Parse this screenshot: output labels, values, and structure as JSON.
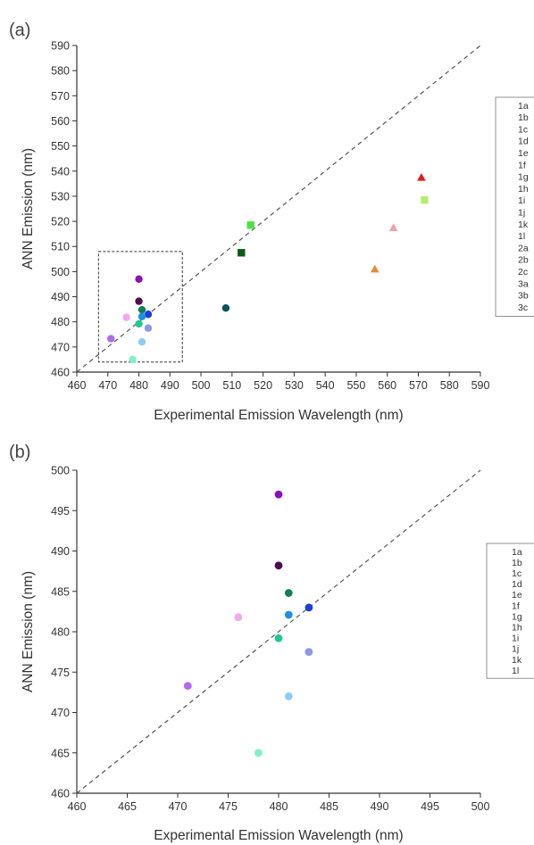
{
  "chart_data": [
    {
      "type": "scatter",
      "panel": "(a)",
      "xlabel": "Experimental Emission Wavelength (nm)",
      "ylabel": "ANN Emission (nm)",
      "xlim": [
        460,
        590
      ],
      "ylim": [
        460,
        590
      ],
      "x_ticks": [
        460,
        470,
        480,
        490,
        500,
        510,
        520,
        530,
        540,
        550,
        560,
        570,
        580,
        590
      ],
      "y_ticks": [
        460,
        470,
        480,
        490,
        500,
        510,
        520,
        530,
        540,
        550,
        560,
        570,
        580,
        590
      ],
      "reference_line": "y = x (dashed)",
      "zoom_box": {
        "x": [
          467,
          494
        ],
        "y": [
          464,
          508
        ]
      },
      "legend_position": "right",
      "series": [
        {
          "name": "1a",
          "marker": "circle",
          "color": "#1fc98f",
          "x": 480,
          "y": 479.2
        },
        {
          "name": "1b",
          "marker": "circle",
          "color": "#7ff0c8",
          "x": 478,
          "y": 465
        },
        {
          "name": "1c",
          "marker": "circle",
          "color": "#127e5a",
          "x": 481,
          "y": 484.8
        },
        {
          "name": "1d",
          "marker": "circle",
          "color": "#0e5059",
          "x": 508,
          "y": 485.5
        },
        {
          "name": "1e",
          "marker": "circle",
          "color": "#1e3fd6",
          "x": 483,
          "y": 483
        },
        {
          "name": "1f",
          "marker": "circle",
          "color": "#1a90e6",
          "x": 481,
          "y": 482.1
        },
        {
          "name": "1g",
          "marker": "circle",
          "color": "#8c98e8",
          "x": 483,
          "y": 477.5
        },
        {
          "name": "1h",
          "marker": "circle",
          "color": "#8ccdf6",
          "x": 481,
          "y": 472
        },
        {
          "name": "1i",
          "marker": "circle",
          "color": "#4a0f4f",
          "x": 480,
          "y": 488.2
        },
        {
          "name": "1j",
          "marker": "circle",
          "color": "#8c0fbf",
          "x": 480,
          "y": 497
        },
        {
          "name": "1k",
          "marker": "circle",
          "color": "#b06af2",
          "x": 471,
          "y": 473.3
        },
        {
          "name": "1l",
          "marker": "circle",
          "color": "#f0a8ee",
          "x": 476,
          "y": 481.8
        },
        {
          "name": "2a",
          "marker": "square",
          "color": "#b8ec73",
          "x": 572,
          "y": 528.5
        },
        {
          "name": "2b",
          "marker": "square",
          "color": "#4fe04a",
          "x": 516,
          "y": 518.5
        },
        {
          "name": "2c",
          "marker": "square",
          "color": "#0c5a14",
          "x": 513,
          "y": 507.5
        },
        {
          "name": "3a",
          "marker": "triangle",
          "color": "#e6893a",
          "x": 556,
          "y": 501
        },
        {
          "name": "3b",
          "marker": "triangle",
          "color": "#f2a1a6",
          "x": 562,
          "y": 517.5
        },
        {
          "name": "3c",
          "marker": "triangle",
          "color": "#e61a1a",
          "x": 571,
          "y": 537.5
        }
      ]
    },
    {
      "type": "scatter",
      "panel": "(b)",
      "xlabel": "Experimental Emission Wavelength (nm)",
      "ylabel": "ANN Emission (nm)",
      "xlim": [
        460,
        500
      ],
      "ylim": [
        460,
        500
      ],
      "x_ticks": [
        460,
        465,
        470,
        475,
        480,
        485,
        490,
        495,
        500
      ],
      "y_ticks": [
        460,
        465,
        470,
        475,
        480,
        485,
        490,
        495,
        500
      ],
      "reference_line": "y = x (dashed)",
      "legend_position": "right",
      "series": [
        {
          "name": "1a",
          "marker": "circle",
          "color": "#1fc98f",
          "x": 480,
          "y": 479.2
        },
        {
          "name": "1b",
          "marker": "circle",
          "color": "#7ff0c8",
          "x": 478,
          "y": 465
        },
        {
          "name": "1c",
          "marker": "circle",
          "color": "#127e5a",
          "x": 481,
          "y": 484.8
        },
        {
          "name": "1d",
          "marker": "circle",
          "color": "#0e5059",
          "x": null,
          "y": null
        },
        {
          "name": "1e",
          "marker": "circle",
          "color": "#1e3fd6",
          "x": 483,
          "y": 483
        },
        {
          "name": "1f",
          "marker": "circle",
          "color": "#1a90e6",
          "x": 481,
          "y": 482.1
        },
        {
          "name": "1g",
          "marker": "circle",
          "color": "#8c98e8",
          "x": 483,
          "y": 477.5
        },
        {
          "name": "1h",
          "marker": "circle",
          "color": "#8ccdf6",
          "x": 481,
          "y": 472
        },
        {
          "name": "1i",
          "marker": "circle",
          "color": "#4a0f4f",
          "x": 480,
          "y": 488.2
        },
        {
          "name": "1j",
          "marker": "circle",
          "color": "#8c0fbf",
          "x": 480,
          "y": 497
        },
        {
          "name": "1k",
          "marker": "circle",
          "color": "#b06af2",
          "x": 471,
          "y": 473.3
        },
        {
          "name": "1l",
          "marker": "circle",
          "color": "#f0a8ee",
          "x": 476,
          "y": 481.8
        }
      ]
    }
  ]
}
